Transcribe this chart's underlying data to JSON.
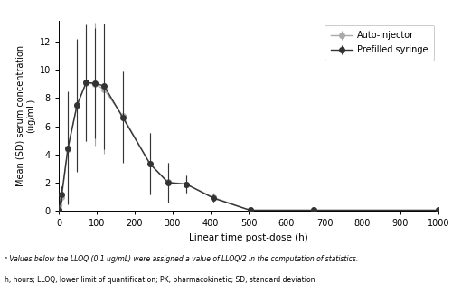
{
  "time": [
    0,
    8,
    24,
    48,
    72,
    96,
    120,
    168,
    240,
    288,
    336,
    408,
    504,
    672,
    1000
  ],
  "auto_injector_mean": [
    0.05,
    1.0,
    4.35,
    7.45,
    9.05,
    9.0,
    8.6,
    6.75,
    3.35,
    2.05,
    1.9,
    0.95,
    0.05,
    0.05,
    0.05
  ],
  "auto_injector_sd_up": [
    0.05,
    0.75,
    3.75,
    4.55,
    4.1,
    4.35,
    4.55,
    3.15,
    2.15,
    1.35,
    0.65,
    0.35,
    0.05,
    0.05,
    0.05
  ],
  "auto_injector_sd_dn": [
    0.05,
    0.75,
    3.75,
    4.55,
    4.1,
    4.35,
    4.55,
    3.15,
    2.15,
    1.35,
    0.65,
    0.35,
    0.05,
    0.05,
    0.05
  ],
  "prefilled_mean": [
    0.05,
    1.2,
    4.45,
    7.5,
    9.1,
    9.05,
    8.85,
    6.65,
    3.35,
    2.0,
    1.9,
    0.9,
    0.05,
    0.05,
    0.05
  ],
  "prefilled_sd_up": [
    0.05,
    0.55,
    4.0,
    4.7,
    4.15,
    3.9,
    4.45,
    3.25,
    2.15,
    1.4,
    0.6,
    0.25,
    0.05,
    0.05,
    0.05
  ],
  "prefilled_sd_dn": [
    0.05,
    0.55,
    4.0,
    4.7,
    4.15,
    3.9,
    4.45,
    3.25,
    2.15,
    1.4,
    0.6,
    0.25,
    0.05,
    0.05,
    0.05
  ],
  "auto_color": "#aaaaaa",
  "prefilled_color": "#333333",
  "ylabel": "Mean (SD) serum concentration\n(ug/mL)",
  "xlabel": "Linear time post-dose (h)",
  "ylim": [
    0,
    13.5
  ],
  "xlim": [
    0,
    1000
  ],
  "yticks": [
    0,
    2,
    4,
    6,
    8,
    10,
    12
  ],
  "xticks": [
    0,
    100,
    200,
    300,
    400,
    500,
    600,
    700,
    800,
    900,
    1000
  ],
  "legend_auto": "Auto-injector",
  "legend_prefilled": "Prefilled syringe",
  "footnote1": "ᵃ Values below the LLOQ (0.1 ug/mL) were assigned a value of LLOQ/2 in the computation of statistics.",
  "footnote2": "h, hours; LLOQ, lower limit of quantification; PK, pharmacokinetic; SD, standard deviation"
}
